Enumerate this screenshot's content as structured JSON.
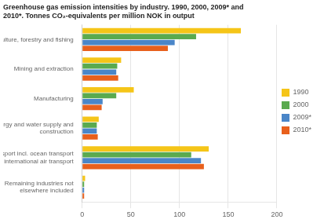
{
  "chart_data": {
    "type": "bar",
    "orientation": "horizontal",
    "title": "Greenhouse gas emission intensities by industry. 1990, 2000, 2009* and\n2010*. Tonnes CO₂-equivalents per million NOK in output",
    "categories": [
      "Agriculture, forestry and fishing",
      "Mining and extraction",
      "Manufacturing",
      "Energy and water supply and\nconstruction",
      "Transport incl. ocean transport\nand international air transport",
      "Remaining industries not\nelsewhere included"
    ],
    "series": [
      {
        "name": "1990",
        "color": "#f5c518",
        "values": [
          163,
          40,
          53,
          17,
          130,
          3
        ]
      },
      {
        "name": "2000",
        "color": "#5aaa4f",
        "values": [
          117,
          36,
          35,
          15,
          112,
          2
        ]
      },
      {
        "name": "2009*",
        "color": "#4a86c8",
        "values": [
          95,
          35,
          21,
          15,
          122,
          2
        ]
      },
      {
        "name": "2010*",
        "color": "#e8601c",
        "values": [
          88,
          37,
          20,
          16,
          125,
          2
        ]
      }
    ],
    "xlim": [
      0,
      200
    ],
    "xticks": [
      0,
      50,
      100,
      150,
      200
    ],
    "grid": true,
    "legend": "right"
  }
}
